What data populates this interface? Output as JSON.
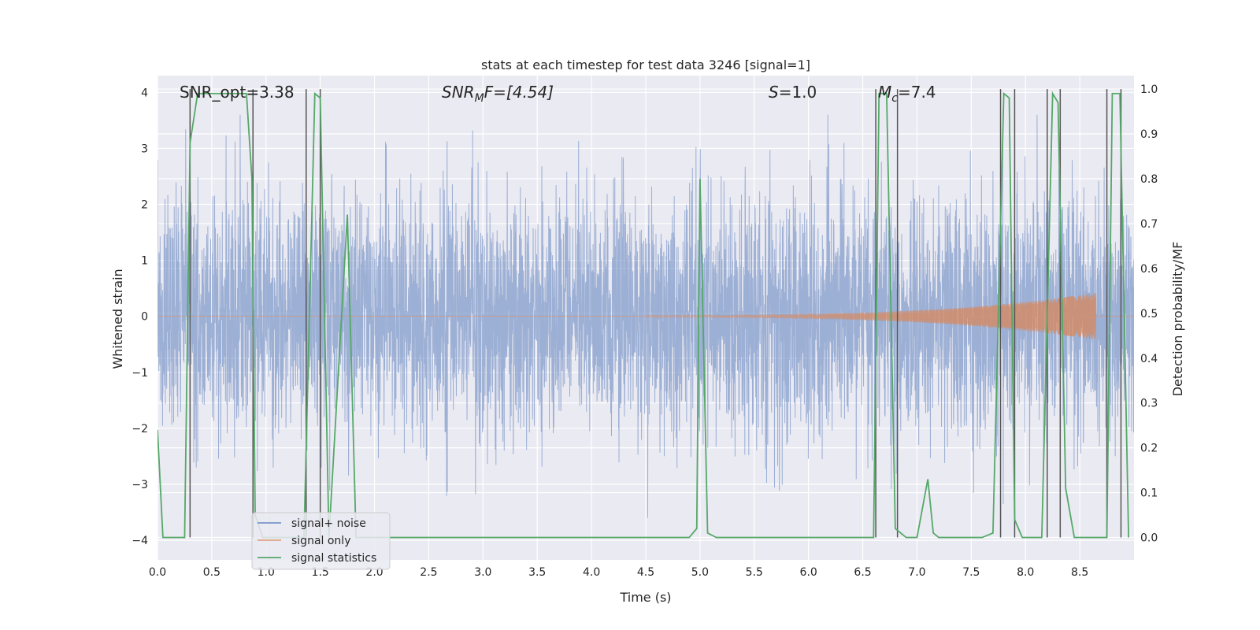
{
  "chart_data": {
    "type": "line",
    "title": "stats at each timestep for test data 3246 [signal=1]",
    "xlabel": "Time (s)",
    "ylabel_left": "Whitened strain",
    "ylabel_right": "Detection probability/MF",
    "xlim": [
      0,
      9.0
    ],
    "ylim_left": [
      -4.35,
      4.3
    ],
    "ylim_right": [
      -0.05,
      1.03
    ],
    "x_ticks": [
      "0.0",
      "0.5",
      "1.0",
      "1.5",
      "2.0",
      "2.5",
      "3.0",
      "3.5",
      "4.0",
      "4.5",
      "5.0",
      "5.5",
      "6.0",
      "6.5",
      "7.0",
      "7.5",
      "8.0",
      "8.5"
    ],
    "y_ticks_left": [
      "4",
      "3",
      "2",
      "1",
      "0",
      "−1",
      "−2",
      "−3",
      "−4"
    ],
    "y_ticks_right": [
      "1.0",
      "0.9",
      "0.8",
      "0.7",
      "0.6",
      "0.5",
      "0.4",
      "0.3",
      "0.2",
      "0.1",
      "0.0"
    ],
    "grid": true,
    "legend_position": "lower-left",
    "annotations": {
      "snr_opt": "SNR_opt=3.38",
      "snr_mf_italic": "SNR",
      "snr_mf_sub": "M",
      "snr_mf_rest": "F=[4.54]",
      "s_italic": "S",
      "s_rest": "=1.0",
      "mc_italic": "M",
      "mc_sub": "c",
      "mc_rest": "=7.4"
    },
    "series": [
      {
        "name": "signal+ noise",
        "color": "#7a96c8",
        "kind": "noise",
        "amplitude_typical": 1.6,
        "amplitude_peak": 3.6
      },
      {
        "name": "signal only",
        "color": "#dd8452",
        "kind": "chirp",
        "chirp_start": 4.5,
        "chirp_end": 8.65,
        "peak_amplitude": 0.4
      },
      {
        "name": "signal statistics",
        "color": "#55a868",
        "kind": "probability",
        "x": [
          0.0,
          0.05,
          0.25,
          0.3,
          0.37,
          0.82,
          0.87,
          0.9,
          0.97,
          1.35,
          1.45,
          1.5,
          1.58,
          1.75,
          1.83,
          2.0,
          4.9,
          4.97,
          5.0,
          5.07,
          5.15,
          6.6,
          6.65,
          6.72,
          6.8,
          6.9,
          7.0,
          7.1,
          7.15,
          7.2,
          7.3,
          7.6,
          7.7,
          7.8,
          7.85,
          7.9,
          7.97,
          8.05,
          8.15,
          8.25,
          8.3,
          8.37,
          8.45,
          8.6,
          8.75,
          8.8,
          8.87,
          8.95
        ],
        "y": [
          0.24,
          0.0,
          0.0,
          0.88,
          0.99,
          0.99,
          0.8,
          0.05,
          0.0,
          0.0,
          0.99,
          0.98,
          0.0,
          0.72,
          0.0,
          0.0,
          0.0,
          0.02,
          0.8,
          0.01,
          0.0,
          0.0,
          0.99,
          0.99,
          0.02,
          0.0,
          0.0,
          0.13,
          0.01,
          0.0,
          0.0,
          0.0,
          0.01,
          0.99,
          0.98,
          0.04,
          0.0,
          0.0,
          0.0,
          0.99,
          0.97,
          0.11,
          0.0,
          0.0,
          0.0,
          0.99,
          0.99,
          0.0
        ]
      }
    ],
    "vertical_markers_x": [
      0.3,
      0.88,
      1.37,
      1.5,
      6.62,
      6.82,
      7.77,
      7.9,
      8.2,
      8.32,
      8.75,
      8.88
    ]
  }
}
